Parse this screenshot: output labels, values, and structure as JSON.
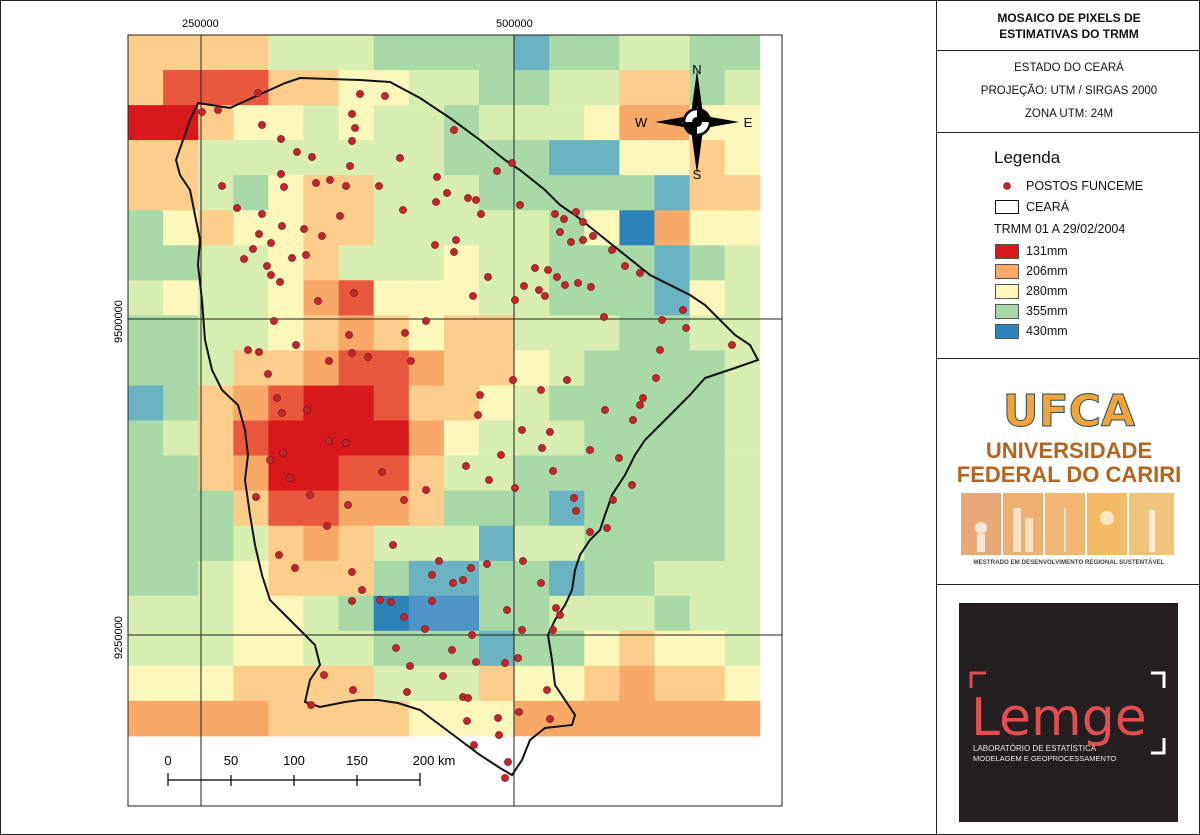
{
  "map": {
    "grid_labels": {
      "top_x1": "250000",
      "top_x2": "500000",
      "left_y1": "9500000",
      "left_y2": "9250000"
    },
    "compass": {
      "n": "N",
      "s": "S",
      "e": "E",
      "w": "W"
    },
    "scalebar": {
      "ticks": [
        "0",
        "50",
        "100",
        "150",
        "200 km"
      ]
    },
    "colors": {
      "131": "#d7191c",
      "168": "#e9573e",
      "206": "#f8a867",
      "243": "#fdce8b",
      "280": "#fcf7bb",
      "318": "#d8efb1",
      "355": "#a8d9a6",
      "392": "#6bb3c1",
      "430": "#2b83ba"
    },
    "grid": [
      "DDDDBBBAA889AABBA8",
      "DFFFDDCCBBAABBDDAB",
      "HHDCCBCBBABBBCEECC",
      "DDBBBBBBBAAA99CCDC",
      "DDBACDDBBBAAAAA9DD",
      "8CDCCDDBBBBBACSECC",
      "AABBCDBBBCBBAAA9AB",
      "BCBBCEFCCCBBAAA9CB",
      "AABBCDEDCDDBBBAABB",
      "AABDDEFFEDDCBAAAAB",
      "9ADEFGGFDDCBAAAAAB",
      "ABDFGGGGECBBBAAAAB",
      "AADEGGFFDBBAAAAAAB",
      "AAADFFEEDAAA9AAAAB",
      "AAABDEDBBB9BBAAAAB",
      "AABCDDDA99AA9AABBB",
      "BBBCCBAIQQAABBBABB",
      "BBBCCBBAAA9AACDCCB",
      "CCCDDDDBBBDCCDEDDC",
      "EEEEDDDDCCCEEEEEEE"
    ],
    "stations": "≤ Ă ƚ ǚ ʪ ǚ ʠ ۤ ԣ Ȧ ۤ ۦ ԧ ॰ ۮ ܳ ᄯ ॷ ۾ ൂ ࢅ ޑ ቊ ᆘ ஘ ሟ ⊧ ⸯ ᔣ ᗚ 🀎 😛 🎖 ⪑ ⪕ ⬡ ⸞ ⣣ 𞐜 𗨈 𛼣 𚴣 𖌤 𓬤 𙠬 𛈰 𕠸 𓌸 𖰼 𚈻 𘌻 𙰾 𖤿 𔀿 𚌿 𕑁 𒭉 𐑆 𑡓 𘥏 𔽝 𓭞 𔥣 𕁬 𐵧 𑝨 𑭮 𒕥 𓱾 𔡾 𕅸 𕙽 𗉽 𔆅 𑆄 𕦍 𐲒 𓦘 𕢢 𑂡 𐊡 𗢡 𓢥 𔖭 𗊯 𘆵 𖒵 𘚻 𚂻 𛂾 𓃂 𒛇 𔏇 𗃇 𙋁 𙧁 𔟋 𕗋 𛻒 𜓕 𜇙 𚗡 𗏗 𓷢 𖟤 𔷫 𙋫 𘣬 𑻲 𒗲 𕫰 𑧼 𙫼 𘯿 𚜂 𛨇 𘨇 𙐍 𓨏 𑨗 𗠙 𙤞 𐐘 𐬜 𑤟 𐰠 𑘡 𑼢 𒰢 𓴥 𓘤 𔈦 𔤦 𕠮 𗔲 𖌸 𔠾 𕸾 𖥅 𓉇 𔕇 𕹉 𙡌 𚅌 𘽐 𙉒 𖅙 𕡛 𗉝 𘍤 𕍦 𓝬 𔅫 𔥭 𐍰 𐭲 𓡴 𕍹 𗦀 𓾇 𖲈 𘖊 𙖊 𛖌 𙺑 𗚙 𖾚 𛚞 𐘥 𘜣 𑘨 𐜱 𗘰 𓰵 𕤵 𙈵 𘬿 𙅂 𖽈 𖁈 𕹌 𘝌 𓩎 𔭖 𚱘 𚽞 𛝟 𗑢 𘍦 𕁨 𔅴 𓽷 𕙺 𔕾 𖆁 𕚃 𕪆 𘂆 𖞋 𓆛 𑚚 𔖠 𒪥 𓂥 𖎣 𖪰 𔦴 𓚷 𕒹 𖒿 𖾿 𕣃 𑗆 𖯂 𖓋 𔏋 𗇙 𕯖 𖳗 𕓘 𗫝 𕿞 𖳛 𖗟 𗖁 𕯙 𕗍"
  },
  "panel": {
    "title_line1": "MOSAICO DE PIXELS DE",
    "title_line2": "ESTIMATIVAS DO TRMM",
    "state": "ESTADO DO CEARÁ",
    "projection": "PROJEÇÃO: UTM / SIRGAS 2000",
    "zone": "ZONA UTM: 24M",
    "legend": {
      "title": "Legenda",
      "points_label": "POSTOS FUNCEME",
      "boundary_label": "CEARÁ",
      "raster_label": "TRMM 01 A 29/02/2004",
      "classes": [
        {
          "label": "131mm",
          "color": "#d7191c"
        },
        {
          "label": "206mm",
          "color": "#f8a867"
        },
        {
          "label": "280mm",
          "color": "#fcf7bb"
        },
        {
          "label": "355mm",
          "color": "#a8d9a6"
        },
        {
          "label": "430mm",
          "color": "#2b83ba"
        }
      ]
    },
    "ufca": {
      "logo_text": "UFCA",
      "name_line1": "UNIVERSIDADE",
      "name_line2": "FEDERAL DO CARIRI",
      "program": "MESTRADO EM DESENVOLVIMENTO REGIONAL SUSTENTÁVEL"
    },
    "lemge": {
      "logo_text": "Lemge",
      "sub_line1": "LABORATÓRIO DE ESTATÍSTICA",
      "sub_line2": "MODELAGEM E GEOPROCESSAMENTO"
    }
  }
}
